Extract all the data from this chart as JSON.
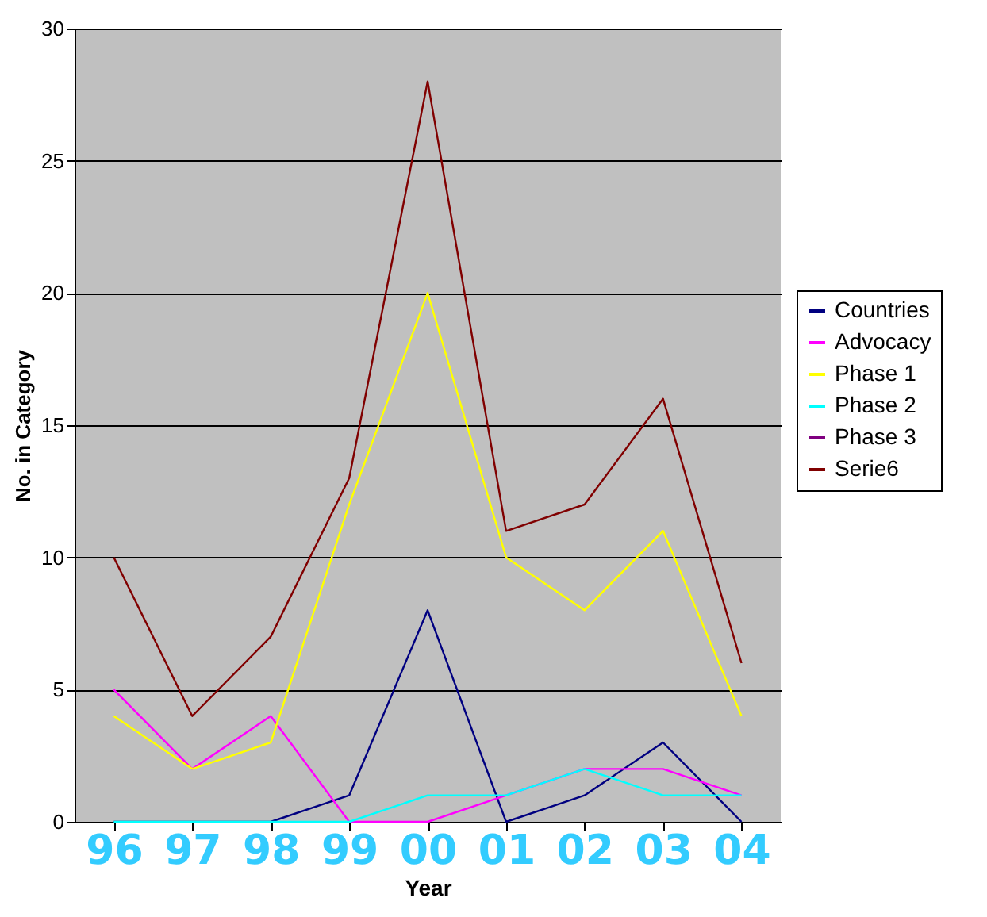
{
  "chart_data": {
    "type": "line",
    "xlabel": "Year",
    "ylabel": "No. in Category",
    "categories": [
      "96",
      "97",
      "98",
      "99",
      "00",
      "01",
      "02",
      "03",
      "04"
    ],
    "series": [
      {
        "name": "Countries",
        "color": "#000080",
        "values": [
          0,
          0,
          0,
          1,
          8,
          0,
          1,
          3,
          0
        ]
      },
      {
        "name": "Advocacy",
        "color": "#ff00ff",
        "values": [
          5,
          2,
          4,
          0,
          0,
          1,
          2,
          2,
          1
        ]
      },
      {
        "name": "Phase 1",
        "color": "#ffff00",
        "values": [
          4,
          2,
          3,
          12,
          20,
          10,
          8,
          11,
          4
        ]
      },
      {
        "name": "Phase 2",
        "color": "#00ffff",
        "values": [
          0,
          0,
          0,
          0,
          1,
          1,
          2,
          1,
          1
        ]
      },
      {
        "name": "Phase 3",
        "color": "#800080",
        "values": [
          null,
          null,
          null,
          null,
          null,
          null,
          null,
          null,
          null
        ]
      },
      {
        "name": "Serie6",
        "color": "#800000",
        "values": [
          10,
          4,
          7,
          13,
          28,
          11,
          12,
          16,
          6
        ]
      }
    ],
    "ylim": [
      0,
      30
    ],
    "yticks": [
      0,
      5,
      10,
      15,
      20,
      25,
      30
    ],
    "grid": "y",
    "legend": "right",
    "marker": "none",
    "line_style": "solid"
  }
}
